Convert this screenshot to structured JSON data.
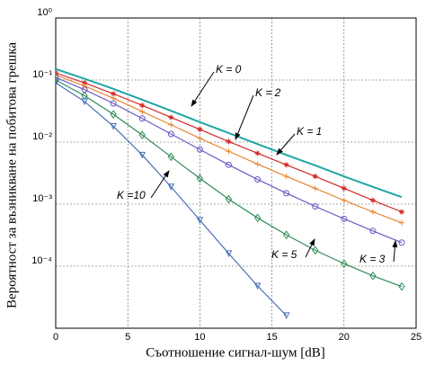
{
  "chart_data": {
    "type": "line",
    "x_label": "Съотношение сигнал-шум [dB]",
    "y_label": "Вероятност за възникване на побитова грешка",
    "x": [
      0,
      2,
      4,
      6,
      8,
      10,
      12,
      14,
      16,
      18,
      20,
      22,
      24
    ],
    "series": [
      {
        "name": "K = 0",
        "color": "#1fa5a5",
        "marker": "none",
        "values": [
          0.15,
          0.105,
          0.072,
          0.048,
          0.032,
          0.021,
          0.014,
          0.0093,
          0.0062,
          0.0042,
          0.0028,
          0.0019,
          0.0013
        ]
      },
      {
        "name": "K = 1",
        "color": "#d42a2a",
        "marker": "star",
        "values": [
          0.13,
          0.09,
          0.06,
          0.039,
          0.025,
          0.016,
          0.0102,
          0.0066,
          0.0043,
          0.0028,
          0.0018,
          0.00115,
          0.00075
        ]
      },
      {
        "name": "K = 2",
        "color": "#e8862e",
        "marker": "plus",
        "values": [
          0.12,
          0.08,
          0.051,
          0.031,
          0.019,
          0.0115,
          0.0071,
          0.0044,
          0.0028,
          0.0018,
          0.00115,
          0.00075,
          0.0005
        ]
      },
      {
        "name": "K = 3",
        "color": "#6c58c4",
        "marker": "circle",
        "values": [
          0.11,
          0.07,
          0.042,
          0.024,
          0.0135,
          0.0076,
          0.0043,
          0.0025,
          0.0015,
          0.00092,
          0.00058,
          0.00037,
          0.00024
        ]
      },
      {
        "name": "K = 5",
        "color": "#2e8b57",
        "marker": "diamond",
        "values": [
          0.1,
          0.056,
          0.028,
          0.013,
          0.0058,
          0.0026,
          0.0012,
          0.0006,
          0.00032,
          0.00018,
          0.00011,
          7e-05,
          4.7e-05
        ]
      },
      {
        "name": "K =10",
        "color": "#4a6fb5",
        "marker": "triangle",
        "values": [
          0.09,
          0.045,
          0.018,
          0.0062,
          0.0019,
          0.00055,
          0.00016,
          4.8e-05,
          1.6e-05,
          null,
          null,
          null,
          null
        ]
      }
    ],
    "xlim": [
      0,
      25
    ],
    "xticks": [
      0,
      5,
      10,
      15,
      20,
      25
    ],
    "ylim": [
      1e-05,
      1
    ],
    "ylog": true,
    "yticks": [
      {
        "value": 1,
        "label": "10⁰"
      },
      {
        "value": 0.1,
        "label": "10⁻¹"
      },
      {
        "value": 0.01,
        "label": "10⁻²"
      },
      {
        "value": 0.001,
        "label": "10⁻³"
      },
      {
        "value": 0.0001,
        "label": "10⁻⁴"
      }
    ],
    "grid": true
  }
}
